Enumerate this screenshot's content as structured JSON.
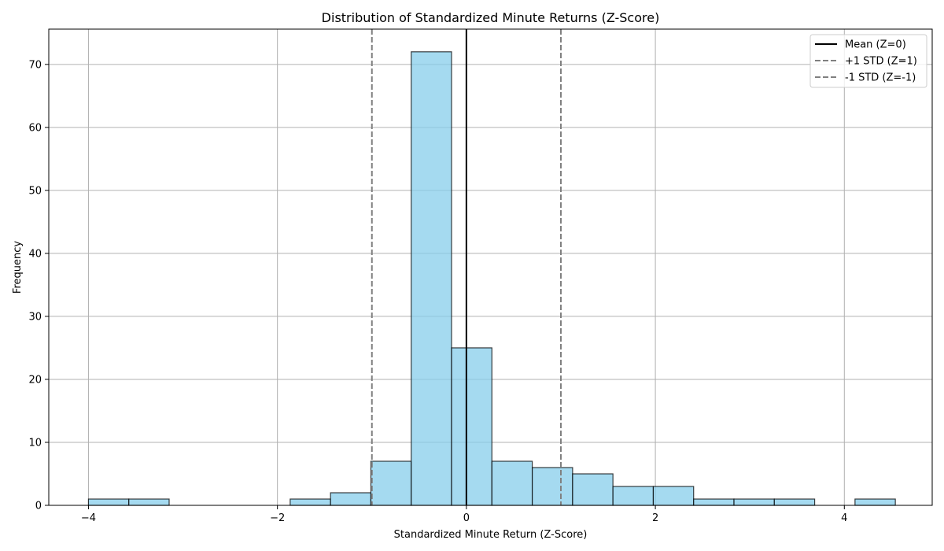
{
  "chart_data": {
    "type": "bar",
    "title": "Distribution of Standardized Minute Returns (Z-Score)",
    "xlabel": "Standardized Minute Return (Z-Score)",
    "ylabel": "Frequency",
    "xlim": [
      -4.42,
      4.93
    ],
    "ylim": [
      0,
      75.6
    ],
    "xticks": [
      -4,
      -2,
      0,
      2,
      4
    ],
    "xtick_labels": [
      "−4",
      "−2",
      "0",
      "2",
      "4"
    ],
    "yticks": [
      0,
      10,
      20,
      30,
      40,
      50,
      60,
      70
    ],
    "ytick_labels": [
      "0",
      "10",
      "20",
      "30",
      "40",
      "50",
      "60",
      "70"
    ],
    "grid": true,
    "bar_color": "#87CEEB",
    "bar_edge_color": "#000000",
    "bins": [
      {
        "x0": -4.0,
        "x1": -3.573,
        "count": 1
      },
      {
        "x0": -3.573,
        "x1": -3.146,
        "count": 1
      },
      {
        "x0": -3.146,
        "x1": -2.719,
        "count": 0
      },
      {
        "x0": -2.719,
        "x1": -2.292,
        "count": 0
      },
      {
        "x0": -2.292,
        "x1": -1.865,
        "count": 0
      },
      {
        "x0": -1.865,
        "x1": -1.438,
        "count": 1
      },
      {
        "x0": -1.438,
        "x1": -1.011,
        "count": 2
      },
      {
        "x0": -1.011,
        "x1": -0.584,
        "count": 7
      },
      {
        "x0": -0.584,
        "x1": -0.157,
        "count": 72
      },
      {
        "x0": -0.157,
        "x1": 0.27,
        "count": 25
      },
      {
        "x0": 0.27,
        "x1": 0.697,
        "count": 7
      },
      {
        "x0": 0.697,
        "x1": 1.124,
        "count": 6
      },
      {
        "x0": 1.124,
        "x1": 1.551,
        "count": 5
      },
      {
        "x0": 1.551,
        "x1": 1.978,
        "count": 3
      },
      {
        "x0": 1.978,
        "x1": 2.405,
        "count": 3
      },
      {
        "x0": 2.405,
        "x1": 2.832,
        "count": 1
      },
      {
        "x0": 2.832,
        "x1": 3.259,
        "count": 1
      },
      {
        "x0": 3.259,
        "x1": 3.686,
        "count": 1
      },
      {
        "x0": 3.686,
        "x1": 4.113,
        "count": 0
      },
      {
        "x0": 4.113,
        "x1": 4.54,
        "count": 1
      }
    ],
    "vlines": [
      {
        "label": "Mean (Z=0)",
        "x": 0,
        "color": "#000000",
        "style": "solid"
      },
      {
        "label": "+1 STD (Z=1)",
        "x": 1,
        "color": "#808080",
        "style": "dashed"
      },
      {
        "label": "-1 STD (Z=-1)",
        "x": -1,
        "color": "#808080",
        "style": "dashed"
      }
    ],
    "legend_position": "top-right"
  }
}
